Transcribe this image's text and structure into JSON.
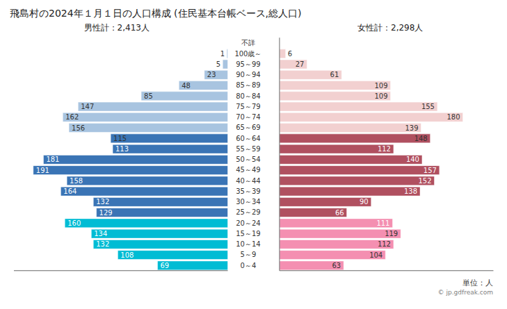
{
  "chart_data": {
    "type": "bar",
    "orientation": "horizontal",
    "title": "飛島村の2024年１月１日の人口構成 (住民基本台帳ベース,総人口)",
    "annotations": [
      "男性計：2,413人",
      "女性計：2,298人",
      "単位：人",
      "© jp.gdfreak.com"
    ],
    "categories": [
      "不詳",
      "100歳～",
      "95～99",
      "90～94",
      "85～89",
      "80～84",
      "75～79",
      "70～74",
      "65～69",
      "60～64",
      "55～59",
      "50～54",
      "45～49",
      "40～44",
      "35～39",
      "30～34",
      "25～29",
      "20～24",
      "15～19",
      "10～14",
      "5～9",
      "0～4"
    ],
    "series": [
      {
        "values": [
          0,
          1,
          5,
          23,
          48,
          85,
          147,
          162,
          156,
          115,
          113,
          181,
          191,
          158,
          164,
          132,
          129,
          160,
          134,
          132,
          108,
          69
        ],
        "colors": [
          "#a8c4e0",
          "#a8c4e0",
          "#a8c4e0",
          "#a8c4e0",
          "#a8c4e0",
          "#a8c4e0",
          "#a8c4e0",
          "#a8c4e0",
          "#a8c4e0",
          "#3a74b5",
          "#3a74b5",
          "#3a74b5",
          "#3a74b5",
          "#3a74b5",
          "#3a74b5",
          "#3a74b5",
          "#3a74b5",
          "#00bcd4",
          "#00bcd4",
          "#00bcd4",
          "#00bcd4",
          "#00bcd4"
        ]
      },
      {
        "values": [
          0,
          6,
          27,
          61,
          109,
          109,
          155,
          180,
          139,
          148,
          112,
          140,
          157,
          152,
          138,
          90,
          66,
          111,
          119,
          112,
          104,
          63
        ],
        "colors": [
          "#f2d0d0",
          "#f2d0d0",
          "#f2d0d0",
          "#f2d0d0",
          "#f2d0d0",
          "#f2d0d0",
          "#f2d0d0",
          "#f2d0d0",
          "#f2d0d0",
          "#b05060",
          "#b05060",
          "#b05060",
          "#b05060",
          "#b05060",
          "#b05060",
          "#b05060",
          "#b05060",
          "#f48fb1",
          "#f48fb1",
          "#f48fb1",
          "#f48fb1",
          "#f48fb1"
        ]
      }
    ],
    "xlim": [
      0,
      210
    ],
    "tick_labels": "y",
    "grid": false,
    "data_labels": true
  }
}
